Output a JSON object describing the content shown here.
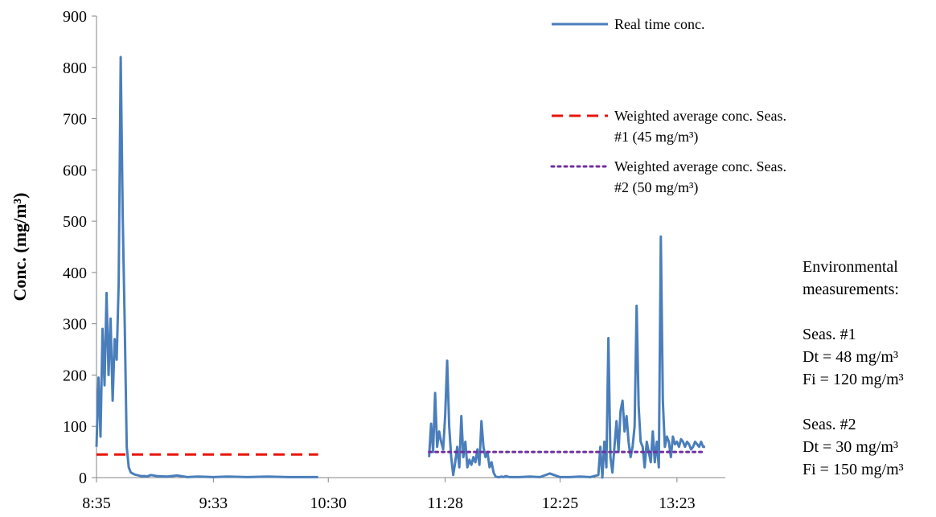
{
  "chart_data": {
    "type": "line",
    "title": "",
    "xlabel": "",
    "ylabel": "Conc. (mg/m³)",
    "ylim": [
      0,
      900
    ],
    "yticks": [
      0,
      100,
      200,
      300,
      400,
      500,
      600,
      700,
      800,
      900
    ],
    "xlim": [
      "8:35",
      "13:47"
    ],
    "xtick_labels": [
      "8:35",
      "9:33",
      "10:30",
      "11:28",
      "12:25",
      "13:23"
    ],
    "grid": false,
    "legend_placement": "top-right",
    "series": [
      {
        "name": "Real time conc.",
        "style": "solid",
        "color": "#4a7ebb",
        "segments": [
          {
            "x": [
              "8:35",
              "8:36",
              "8:37",
              "8:38",
              "8:39",
              "8:40",
              "8:41",
              "8:42",
              "8:43",
              "8:44",
              "8:45",
              "8:46",
              "8:47",
              "8:48",
              "8:49",
              "8:50",
              "8:51",
              "8:52",
              "8:53",
              "8:54",
              "8:55",
              "8:56",
              "8:57",
              "8:58",
              "8:59",
              "9:00",
              "9:02",
              "9:05",
              "9:10",
              "9:15",
              "9:20",
              "9:25",
              "9:33",
              "9:40",
              "9:50",
              "10:00",
              "10:10",
              "10:20",
              "10:25"
            ],
            "y": [
              60,
              195,
              80,
              290,
              180,
              360,
              200,
              310,
              150,
              270,
              230,
              380,
              820,
              510,
              300,
              60,
              20,
              10,
              8,
              6,
              5,
              4,
              3,
              3,
              3,
              2,
              5,
              3,
              2,
              4,
              1,
              2,
              1,
              2,
              1,
              2,
              1,
              1,
              1
            ]
          },
          {
            "x": [
              "11:20",
              "11:21",
              "11:22",
              "11:23",
              "11:24",
              "11:25",
              "11:26",
              "11:27",
              "11:28",
              "11:29",
              "11:30",
              "11:31",
              "11:32",
              "11:33",
              "11:34",
              "11:35",
              "11:36",
              "11:37",
              "11:38",
              "11:39",
              "11:40",
              "11:41",
              "11:42",
              "11:43",
              "11:44",
              "11:45",
              "11:46",
              "11:47",
              "11:48",
              "11:49",
              "11:50",
              "11:51",
              "11:52",
              "11:53",
              "11:54",
              "11:55",
              "11:56",
              "11:57",
              "11:58",
              "12:00",
              "12:05",
              "12:10",
              "12:15",
              "12:20",
              "12:25",
              "12:30",
              "12:35",
              "12:40",
              "12:44",
              "12:45",
              "12:46",
              "12:47",
              "12:48",
              "12:49",
              "12:50",
              "12:51",
              "12:52",
              "12:53",
              "12:54",
              "12:55",
              "12:56",
              "12:57",
              "12:58",
              "12:59",
              "13:00",
              "13:01",
              "13:02",
              "13:03",
              "13:04",
              "13:05",
              "13:06",
              "13:07",
              "13:08",
              "13:09",
              "13:10",
              "13:11",
              "13:12",
              "13:13",
              "13:14",
              "13:15",
              "13:16",
              "13:17",
              "13:18",
              "13:19",
              "13:20",
              "13:21",
              "13:22",
              "13:23",
              "13:24",
              "13:25",
              "13:26",
              "13:27",
              "13:28",
              "13:29",
              "13:30",
              "13:31",
              "13:32",
              "13:33",
              "13:34",
              "13:35",
              "13:36",
              "13:37"
            ],
            "y": [
              40,
              105,
              50,
              165,
              60,
              90,
              70,
              55,
              120,
              228,
              100,
              40,
              5,
              30,
              60,
              20,
              120,
              40,
              70,
              20,
              35,
              25,
              40,
              30,
              55,
              25,
              110,
              60,
              40,
              50,
              20,
              30,
              10,
              2,
              1,
              1,
              2,
              1,
              3,
              1,
              1,
              2,
              1,
              8,
              1,
              1,
              2,
              1,
              5,
              60,
              0,
              70,
              20,
              272,
              40,
              10,
              60,
              110,
              50,
              130,
              150,
              90,
              120,
              70,
              40,
              60,
              100,
              335,
              140,
              70,
              60,
              20,
              70,
              50,
              30,
              90,
              30,
              70,
              20,
              470,
              150,
              60,
              80,
              70,
              40,
              80,
              65,
              70,
              60,
              75,
              70,
              60,
              70,
              65,
              55,
              60,
              70,
              65,
              60,
              70,
              60,
              60
            ]
          }
        ]
      },
      {
        "name": "Weighted average conc. Seas. #1 (45 mg/m³)",
        "style": "dashed",
        "color": "#e8140c",
        "x": [
          "8:35",
          "10:25"
        ],
        "y": [
          45,
          45
        ]
      },
      {
        "name": "Weighted average conc. Seas. #2 (50 mg/m³)",
        "style": "dotted",
        "color": "#7030a0",
        "x": [
          "11:20",
          "13:37"
        ],
        "y": [
          50,
          50
        ]
      }
    ],
    "legend": [
      {
        "lines": [
          "Real time conc."
        ],
        "style": "solid",
        "color": "#4a7ebb"
      },
      {
        "lines": [
          "Weighted average conc. Seas.",
          "#1 (45 mg/m³)"
        ],
        "style": "dashed",
        "color": "#e8140c"
      },
      {
        "lines": [
          "Weighted average conc. Seas.",
          "#2 (50 mg/m³)"
        ],
        "style": "dotted",
        "color": "#7030a0"
      }
    ]
  },
  "env_panel": {
    "heading_line1": "Environmental",
    "heading_line2": "measurements:",
    "season1": {
      "label": "Seas. #1",
      "dt": "Dt = 48 mg/m³",
      "fi": "Fi = 120 mg/m³"
    },
    "season2": {
      "label": "Seas. #2",
      "dt": "Dt = 30 mg/m³",
      "fi": "Fi = 150 mg/m³"
    }
  }
}
